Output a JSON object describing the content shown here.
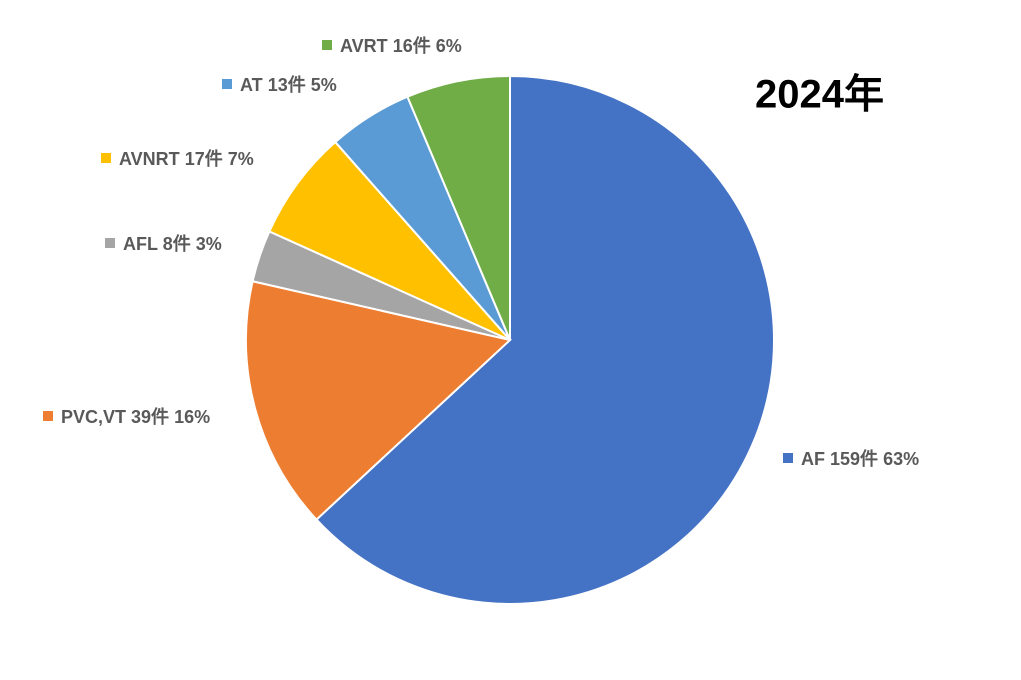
{
  "chart_data": {
    "type": "pie",
    "title": "2024年",
    "categories": [
      "AF",
      "PVC,VT",
      "AFL",
      "AVNRT",
      "AT",
      "AVRT"
    ],
    "values": [
      159,
      39,
      8,
      17,
      13,
      16
    ],
    "value_labels": [
      "159件",
      "39件",
      "8件",
      "17件",
      "13件",
      "16件"
    ],
    "percents": [
      63,
      16,
      3,
      7,
      5,
      6
    ],
    "percent_labels": [
      "63%",
      "16%",
      "3%",
      "7%",
      "5%",
      "6%"
    ],
    "colors": [
      "#4472c4",
      "#ed7d31",
      "#a5a5a5",
      "#ffc000",
      "#5b9bd5",
      "#70ad47"
    ]
  }
}
